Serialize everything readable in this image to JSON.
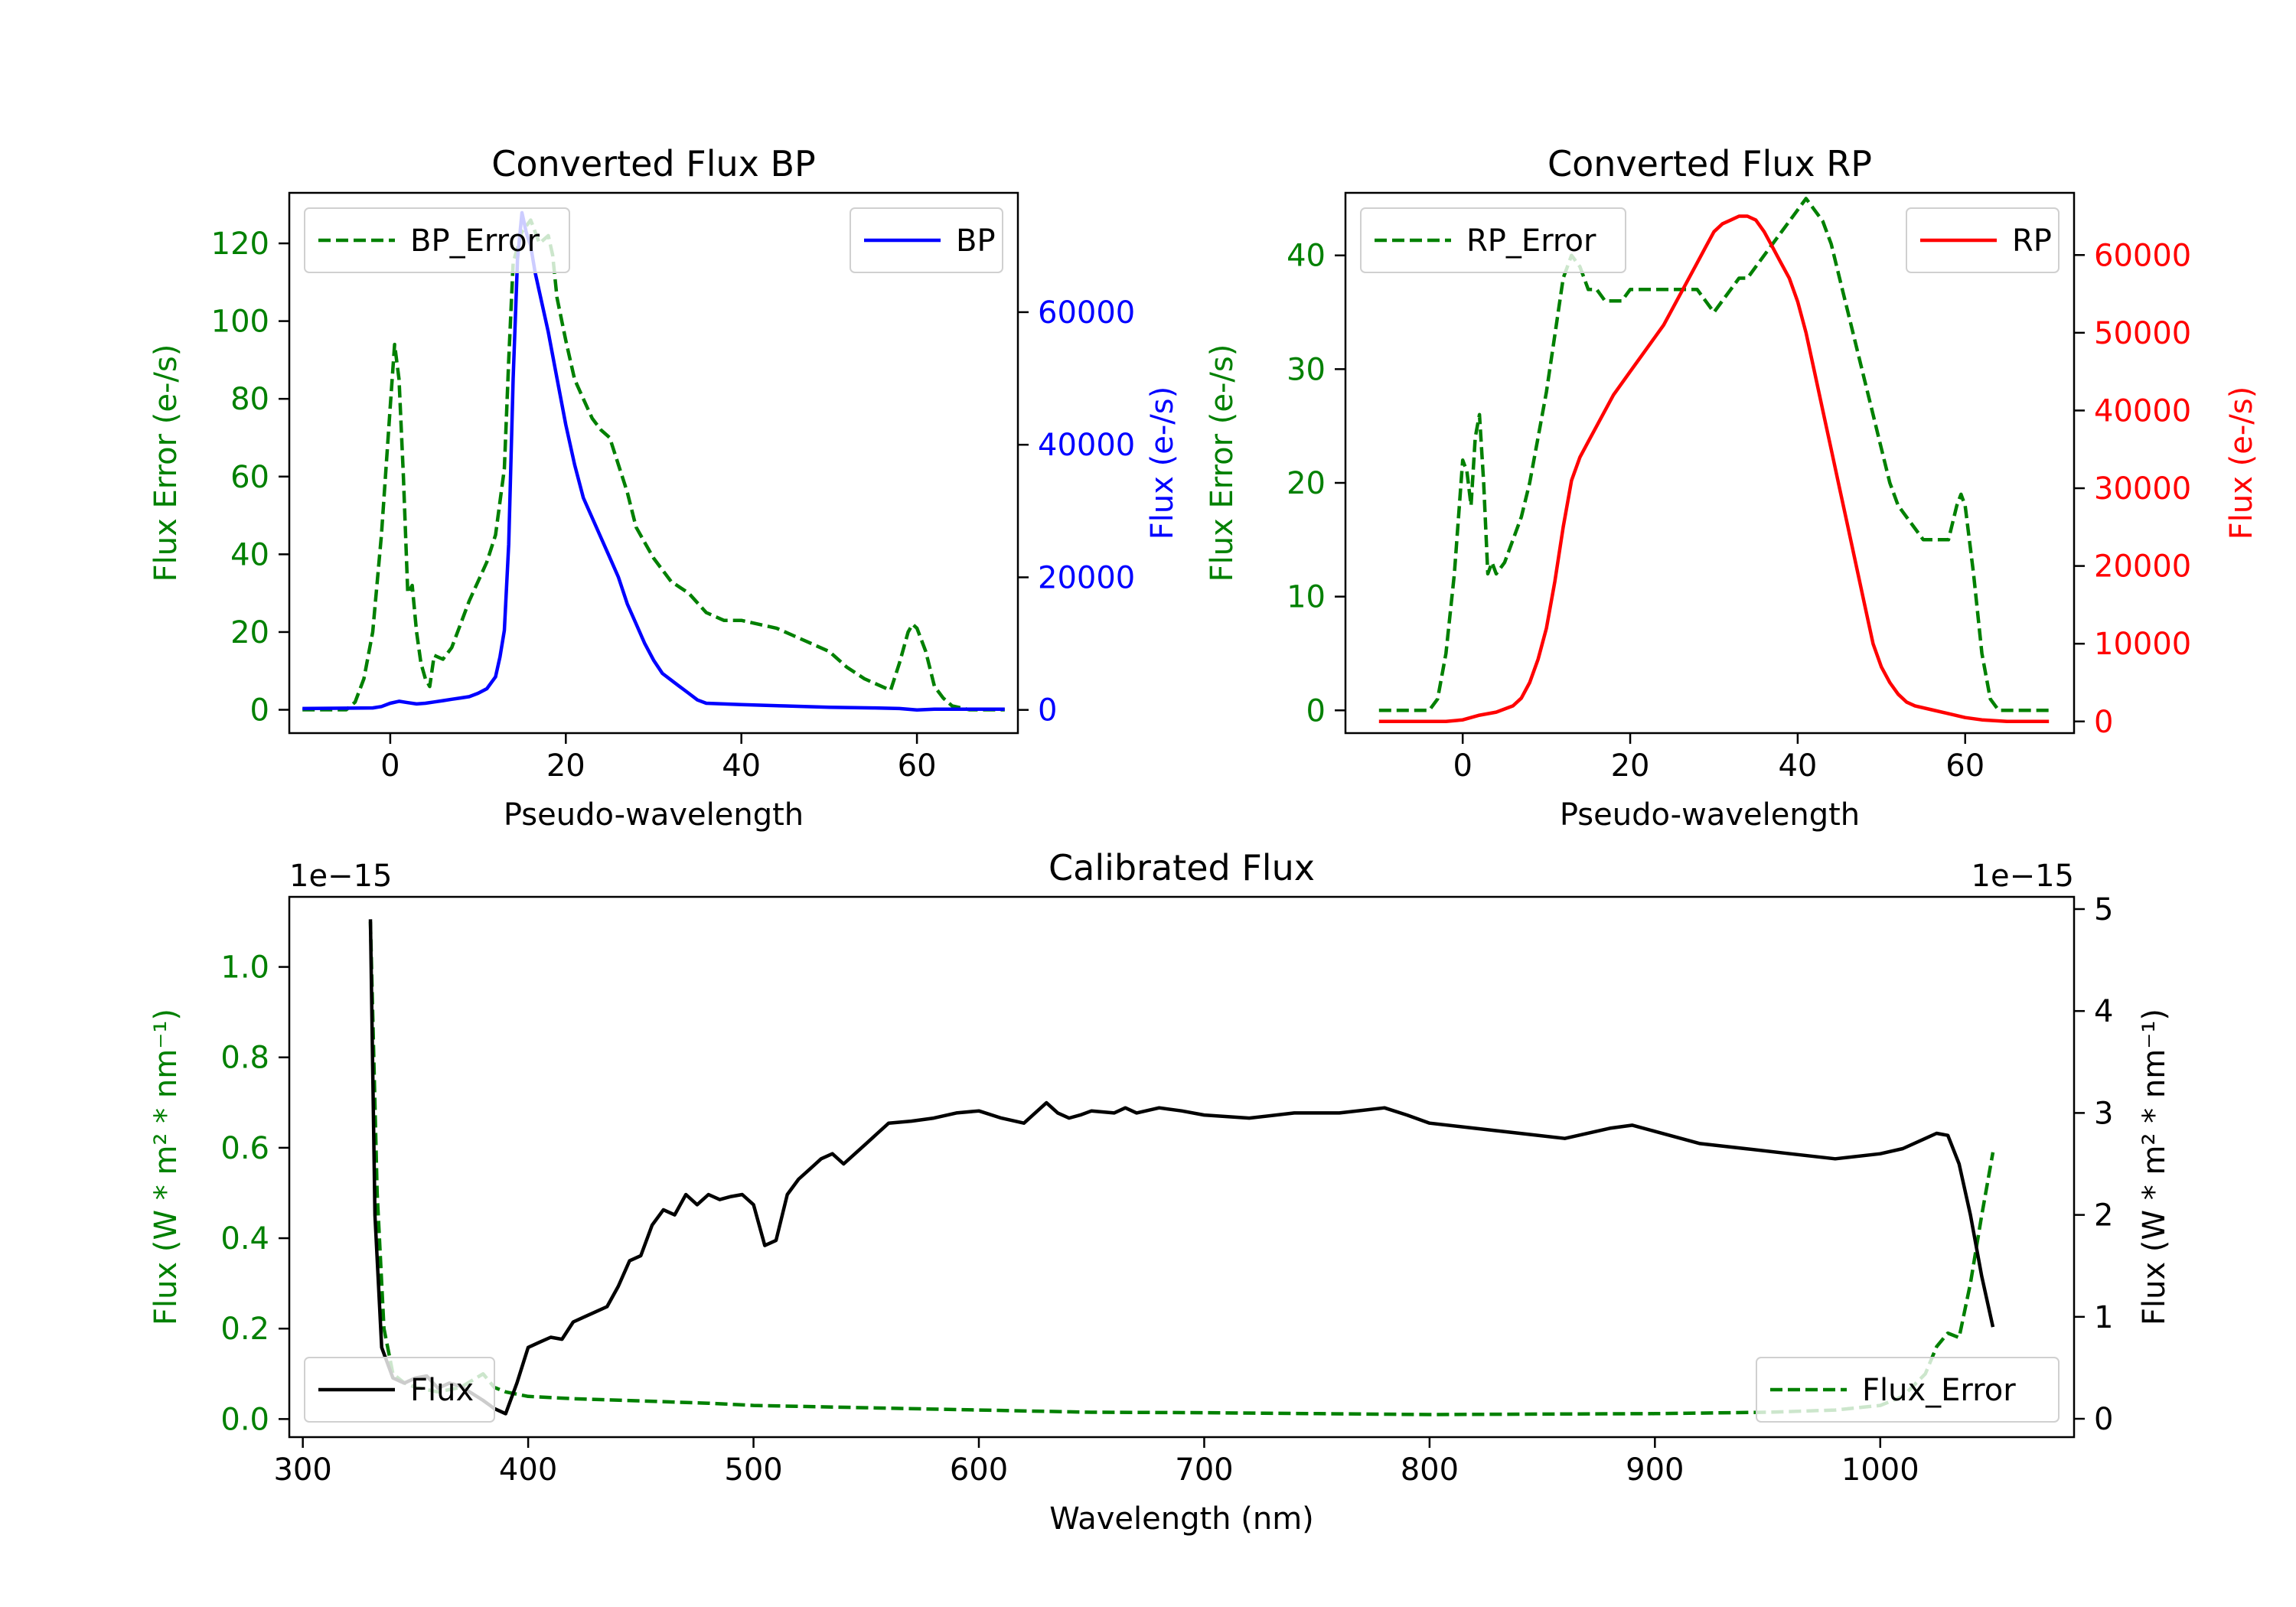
{
  "chart_data": [
    {
      "type": "line",
      "title": "Converted Flux BP",
      "xlabel": "Pseudo-wavelength",
      "ylabel_left": "Flux Error (e-/s)",
      "ylabel_right": "Flux (e-/s)",
      "xlim": [
        -11.5,
        71.5
      ],
      "ylim_left": [
        -6,
        133
      ],
      "ylim_right": [
        -3500,
        78000
      ],
      "xticks": [
        0,
        20,
        40,
        60
      ],
      "yticks_left": [
        0,
        20,
        40,
        60,
        80,
        100,
        120
      ],
      "yticks_right": [
        0,
        20000,
        40000,
        60000
      ],
      "legend_left": {
        "position": "upper left",
        "label": "BP_Error"
      },
      "legend_right": {
        "position": "upper right",
        "label": "BP"
      },
      "colors": {
        "left_axis": "#008000",
        "right_axis": "#0000ff"
      },
      "series": [
        {
          "name": "BP_Error",
          "axis": "left",
          "style": "dashed",
          "color": "#008000",
          "x": [
            -10,
            -5,
            -4,
            -3,
            -2,
            -1,
            0,
            0.5,
            1,
            1.5,
            2,
            2.5,
            3,
            3.5,
            4,
            4.5,
            5,
            6,
            7,
            8,
            9,
            10,
            11,
            12,
            13,
            13.5,
            14,
            15,
            16,
            17,
            18,
            18.5,
            19,
            20,
            21,
            22,
            23,
            24,
            25,
            26,
            27,
            28,
            29,
            30,
            32,
            34,
            36,
            38,
            40,
            42,
            44,
            46,
            48,
            50,
            52,
            54,
            56,
            57,
            58,
            59,
            59.5,
            60,
            61,
            62,
            63,
            64,
            66,
            68,
            70
          ],
          "y": [
            0,
            0,
            2,
            8,
            20,
            45,
            78,
            94,
            85,
            60,
            30,
            32,
            20,
            12,
            8,
            6,
            14,
            13,
            16,
            22,
            28,
            33,
            38,
            45,
            62,
            90,
            115,
            123,
            126,
            120,
            122,
            117,
            106,
            95,
            85,
            80,
            75,
            72,
            70,
            63,
            56,
            47,
            43,
            39,
            33,
            30,
            25,
            23,
            23,
            22,
            21,
            19,
            17,
            15,
            11,
            8,
            6,
            5,
            12,
            20,
            22,
            21,
            15,
            6,
            3,
            1,
            0,
            0,
            0
          ]
        },
        {
          "name": "BP",
          "axis": "right",
          "style": "solid",
          "color": "#0000ff",
          "x": [
            -10,
            -2,
            -1,
            0,
            1,
            2,
            3,
            4,
            5,
            6,
            7,
            8,
            9,
            10,
            11,
            12,
            12.5,
            13,
            13.5,
            14,
            14.5,
            15,
            15.5,
            16,
            16.5,
            17,
            18,
            19,
            20,
            21,
            22,
            23,
            24,
            25,
            26,
            27,
            28,
            29,
            30,
            31,
            32,
            33,
            34,
            35,
            36,
            38,
            40,
            45,
            50,
            55,
            58,
            60,
            62,
            65,
            70
          ],
          "y": [
            200,
            300,
            500,
            1000,
            1300,
            1100,
            900,
            1000,
            1200,
            1400,
            1600,
            1800,
            2000,
            2500,
            3200,
            5000,
            8000,
            12000,
            25000,
            50000,
            68000,
            75000,
            72000,
            70000,
            66000,
            63000,
            57000,
            50000,
            43000,
            37000,
            32000,
            29000,
            26000,
            23000,
            20000,
            16000,
            13000,
            10000,
            7500,
            5500,
            4500,
            3500,
            2500,
            1500,
            1000,
            900,
            800,
            600,
            400,
            300,
            200,
            0,
            100,
            100,
            100
          ]
        }
      ]
    },
    {
      "type": "line",
      "title": "Converted Flux RP",
      "xlabel": "Pseudo-wavelength",
      "ylabel_left": "Flux Error (e-/s)",
      "ylabel_right": "Flux (e-/s)",
      "xlim": [
        -14,
        73
      ],
      "ylim_left": [
        -2,
        45.5
      ],
      "ylim_right": [
        -1500,
        68000
      ],
      "xticks": [
        0,
        20,
        40,
        60
      ],
      "yticks_left": [
        0,
        10,
        20,
        30,
        40
      ],
      "yticks_right": [
        0,
        10000,
        20000,
        30000,
        40000,
        50000,
        60000
      ],
      "legend_left": {
        "position": "upper left",
        "label": "RP_Error"
      },
      "legend_right": {
        "position": "upper right",
        "label": "RP"
      },
      "colors": {
        "left_axis": "#008000",
        "right_axis": "#ff0000"
      },
      "series": [
        {
          "name": "RP_Error",
          "axis": "left",
          "style": "dashed",
          "color": "#008000",
          "x": [
            -10,
            -4,
            -3,
            -2,
            -1,
            0,
            0.5,
            1,
            1.5,
            2,
            2.5,
            3,
            3.5,
            4,
            5,
            6,
            7,
            8,
            9,
            10,
            11,
            12,
            13,
            14,
            15,
            16,
            17,
            18,
            19,
            20,
            22,
            24,
            26,
            27,
            28,
            29,
            30,
            31,
            32,
            33,
            34,
            36,
            38,
            40,
            41,
            42,
            43,
            44,
            45,
            46,
            47,
            48,
            49,
            50,
            51,
            52,
            53,
            54,
            55,
            56,
            57,
            58,
            59,
            59.5,
            60,
            61,
            62,
            63,
            64,
            66,
            70
          ],
          "y": [
            0,
            0,
            1,
            5,
            12,
            22,
            21,
            18,
            24,
            26,
            20,
            12,
            13,
            12,
            13,
            15,
            17,
            20,
            24,
            28,
            33,
            38,
            40,
            39,
            37,
            37,
            36,
            36,
            36,
            37,
            37,
            37,
            37,
            37,
            37,
            36,
            35,
            36,
            37,
            38,
            38,
            40,
            42,
            44,
            45,
            44,
            43,
            41,
            38,
            35,
            32,
            29,
            26,
            23,
            20,
            18,
            17,
            16,
            15,
            15,
            15,
            15,
            18,
            19,
            18,
            12,
            5,
            1,
            0,
            0,
            0
          ]
        },
        {
          "name": "RP",
          "axis": "right",
          "style": "solid",
          "color": "#ff0000",
          "x": [
            -10,
            -5,
            -2,
            0,
            2,
            4,
            6,
            7,
            8,
            9,
            10,
            11,
            12,
            13,
            14,
            15,
            16,
            18,
            20,
            22,
            24,
            26,
            28,
            29,
            30,
            31,
            32,
            33,
            34,
            35,
            36,
            37,
            38,
            39,
            40,
            41,
            42,
            43,
            44,
            45,
            46,
            47,
            48,
            49,
            50,
            51,
            52,
            53,
            54,
            56,
            58,
            60,
            62,
            65,
            70
          ],
          "y": [
            0,
            0,
            0,
            200,
            800,
            1200,
            2000,
            3000,
            5000,
            8000,
            12000,
            18000,
            25000,
            31000,
            34000,
            36000,
            38000,
            42000,
            45000,
            48000,
            51000,
            55000,
            59000,
            61000,
            63000,
            64000,
            64500,
            65000,
            65000,
            64500,
            63000,
            61000,
            59000,
            57000,
            54000,
            50000,
            45000,
            40000,
            35000,
            30000,
            25000,
            20000,
            15000,
            10000,
            7000,
            5000,
            3500,
            2500,
            2000,
            1500,
            1000,
            500,
            200,
            0,
            0
          ]
        }
      ]
    },
    {
      "type": "line",
      "title": "Calibrated Flux",
      "xlabel": "Wavelength (nm)",
      "ylabel_left": "Flux (W * m² * nm⁻¹)",
      "ylabel_right": "Flux (W * m² * nm⁻¹)",
      "offset_left": "1e−15",
      "offset_right": "1e−15",
      "xlim": [
        294,
        1086
      ],
      "ylim_left": [
        -0.04,
        1.155
      ],
      "ylim_right": [
        -0.18,
        5.12
      ],
      "xticks": [
        300,
        400,
        500,
        600,
        700,
        800,
        900,
        1000
      ],
      "yticks_left": [
        "0.0",
        "0.2",
        "0.4",
        "0.6",
        "0.8",
        "1.0"
      ],
      "yticks_right": [
        0,
        1,
        2,
        3,
        4,
        5
      ],
      "legend_left": {
        "position": "lower left",
        "label": "Flux"
      },
      "legend_right": {
        "position": "lower right",
        "label": "Flux_Error"
      },
      "colors": {
        "left_axis": "#008000",
        "right_axis": "#000000"
      },
      "series": [
        {
          "name": "Flux_Error",
          "axis": "left",
          "style": "dashed",
          "color": "#008000",
          "x": [
            330,
            333,
            336,
            340,
            345,
            350,
            360,
            370,
            380,
            385,
            390,
            400,
            420,
            450,
            480,
            500,
            550,
            600,
            650,
            700,
            750,
            800,
            850,
            900,
            950,
            980,
            1000,
            1010,
            1020,
            1025,
            1030,
            1035,
            1040,
            1045,
            1050
          ],
          "y": [
            1.1,
            0.5,
            0.2,
            0.1,
            0.08,
            0.07,
            0.06,
            0.07,
            0.1,
            0.07,
            0.06,
            0.05,
            0.045,
            0.04,
            0.035,
            0.03,
            0.025,
            0.02,
            0.015,
            0.014,
            0.012,
            0.01,
            0.011,
            0.012,
            0.015,
            0.02,
            0.03,
            0.05,
            0.1,
            0.16,
            0.19,
            0.18,
            0.3,
            0.45,
            0.59
          ]
        },
        {
          "name": "Flux",
          "axis": "right",
          "style": "solid",
          "color": "#000000",
          "x": [
            330,
            332,
            335,
            340,
            345,
            350,
            355,
            360,
            365,
            370,
            375,
            380,
            385,
            390,
            395,
            400,
            405,
            410,
            415,
            420,
            425,
            430,
            435,
            440,
            445,
            450,
            455,
            460,
            465,
            470,
            475,
            480,
            485,
            490,
            495,
            500,
            505,
            510,
            515,
            520,
            525,
            530,
            535,
            540,
            545,
            550,
            555,
            560,
            570,
            580,
            590,
            600,
            610,
            620,
            630,
            635,
            640,
            645,
            650,
            660,
            665,
            670,
            680,
            690,
            700,
            720,
            740,
            760,
            780,
            790,
            800,
            820,
            840,
            860,
            880,
            890,
            900,
            920,
            940,
            960,
            980,
            1000,
            1010,
            1020,
            1025,
            1030,
            1035,
            1040,
            1045,
            1050
          ],
          "y": [
            4.9,
            2.0,
            0.7,
            0.4,
            0.35,
            0.4,
            0.42,
            0.3,
            0.35,
            0.32,
            0.25,
            0.18,
            0.1,
            0.05,
            0.35,
            0.7,
            0.75,
            0.8,
            0.78,
            0.95,
            1.0,
            1.05,
            1.1,
            1.3,
            1.55,
            1.6,
            1.9,
            2.05,
            2.0,
            2.2,
            2.1,
            2.2,
            2.15,
            2.18,
            2.2,
            2.1,
            1.7,
            1.75,
            2.2,
            2.35,
            2.45,
            2.55,
            2.6,
            2.5,
            2.6,
            2.7,
            2.8,
            2.9,
            2.92,
            2.95,
            3.0,
            3.02,
            2.95,
            2.9,
            3.1,
            3.0,
            2.95,
            2.98,
            3.02,
            3.0,
            3.05,
            3.0,
            3.05,
            3.02,
            2.98,
            2.95,
            3.0,
            3.0,
            3.05,
            2.98,
            2.9,
            2.85,
            2.8,
            2.75,
            2.85,
            2.88,
            2.82,
            2.7,
            2.65,
            2.6,
            2.55,
            2.6,
            2.65,
            2.75,
            2.8,
            2.78,
            2.5,
            2.0,
            1.4,
            0.9
          ]
        }
      ]
    }
  ]
}
